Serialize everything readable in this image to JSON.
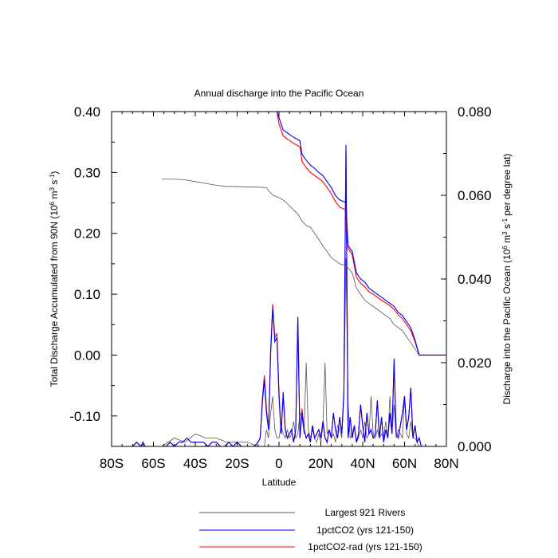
{
  "chart_data": {
    "type": "line",
    "title": "Annual discharge into the Pacific Ocean",
    "xlabel": "Latitude",
    "ylabel_left": "Total Discharge Accumulated from 90N (10^6 m^3 s^-1)",
    "ylabel_right": "Discharge into the Pacific Ocean (10^6 m^3 s^-1 per degree lat)",
    "xlim": [
      -80,
      80
    ],
    "ylim_left": [
      -0.15,
      0.4
    ],
    "ylim_right": [
      0.0,
      0.08
    ],
    "x_ticks": [
      {
        "value": -80,
        "label": "80S"
      },
      {
        "value": -60,
        "label": "60S"
      },
      {
        "value": -40,
        "label": "40S"
      },
      {
        "value": -20,
        "label": "20S"
      },
      {
        "value": 0,
        "label": "0"
      },
      {
        "value": 20,
        "label": "20N"
      },
      {
        "value": 40,
        "label": "40N"
      },
      {
        "value": 60,
        "label": "60N"
      },
      {
        "value": 80,
        "label": "80N"
      }
    ],
    "y_left_ticks": [
      {
        "value": 0.4,
        "label": "0.40"
      },
      {
        "value": 0.3,
        "label": "0.30"
      },
      {
        "value": 0.2,
        "label": "0.20"
      },
      {
        "value": 0.1,
        "label": "0.10"
      },
      {
        "value": 0.0,
        "label": "0.00"
      },
      {
        "value": -0.1,
        "label": "-0.10"
      }
    ],
    "y_right_ticks": [
      {
        "value": 0.08,
        "label": "0.080"
      },
      {
        "value": 0.06,
        "label": "0.060"
      },
      {
        "value": 0.04,
        "label": "0.040"
      },
      {
        "value": 0.02,
        "label": "0.020"
      },
      {
        "value": 0.0,
        "label": "0.000"
      }
    ],
    "legend": [
      {
        "name": "Largest 921 Rivers",
        "color": "#555555"
      },
      {
        "name": "1pctCO2 (yrs 121-150)",
        "color": "#0000ff"
      },
      {
        "name": "1pctCO2-rad (yrs 121-150)",
        "color": "#ff0000"
      }
    ],
    "legend_placement": "bottom",
    "series": [
      {
        "name": "Largest 921 Rivers",
        "kind": "accumulated",
        "axis": "left",
        "color": "#555555",
        "x": [
          -56,
          -50,
          -45,
          -40,
          -35,
          -30,
          -25,
          -20,
          -15,
          -10,
          -6,
          -5,
          -3,
          -1,
          1,
          3,
          5,
          7,
          9,
          11,
          13,
          15,
          17,
          19,
          21,
          23,
          25,
          27,
          29,
          31,
          32,
          33,
          35,
          37,
          39,
          41,
          43,
          45,
          47,
          49,
          51,
          53,
          55,
          57,
          59,
          61,
          63,
          65,
          67,
          69,
          72,
          75,
          80
        ],
        "y": [
          0.289,
          0.289,
          0.288,
          0.285,
          0.282,
          0.279,
          0.277,
          0.277,
          0.276,
          0.276,
          0.275,
          0.27,
          0.263,
          0.26,
          0.257,
          0.252,
          0.245,
          0.238,
          0.232,
          0.22,
          0.213,
          0.21,
          0.2,
          0.19,
          0.179,
          0.17,
          0.16,
          0.155,
          0.15,
          0.148,
          0.147,
          0.143,
          0.135,
          0.11,
          0.1,
          0.09,
          0.085,
          0.08,
          0.075,
          0.07,
          0.065,
          0.06,
          0.05,
          0.045,
          0.04,
          0.03,
          0.02,
          0.01,
          0.0,
          0.0,
          0.0,
          0.0,
          0.0
        ]
      },
      {
        "name": "1pctCO2 (yrs 121-150)",
        "kind": "accumulated",
        "axis": "left",
        "color": "#0000ff",
        "x": [
          -1,
          0,
          2,
          4,
          6,
          8,
          10,
          11,
          13,
          15,
          17,
          19,
          21,
          23,
          25,
          27,
          29,
          31,
          32,
          33,
          35,
          37,
          39,
          41,
          43,
          45,
          47,
          49,
          51,
          53,
          55,
          57,
          59,
          61,
          63,
          65,
          67,
          69,
          72,
          75,
          80
        ],
        "y": [
          0.4,
          0.39,
          0.37,
          0.365,
          0.36,
          0.356,
          0.352,
          0.33,
          0.32,
          0.312,
          0.307,
          0.3,
          0.295,
          0.285,
          0.275,
          0.262,
          0.255,
          0.252,
          0.25,
          0.18,
          0.17,
          0.135,
          0.125,
          0.12,
          0.11,
          0.105,
          0.1,
          0.095,
          0.09,
          0.085,
          0.08,
          0.07,
          0.065,
          0.055,
          0.045,
          0.025,
          0.0,
          0.0,
          0.0,
          0.0,
          0.0
        ]
      },
      {
        "name": "1pctCO2-rad (yrs 121-150)",
        "kind": "accumulated",
        "axis": "left",
        "color": "#ff0000",
        "x": [
          -1,
          0,
          2,
          4,
          6,
          8,
          10,
          11,
          13,
          15,
          17,
          19,
          21,
          23,
          25,
          27,
          29,
          31,
          32,
          33,
          35,
          37,
          39,
          41,
          43,
          45,
          47,
          49,
          51,
          53,
          55,
          57,
          59,
          61,
          63,
          65,
          67,
          69,
          72,
          75,
          80
        ],
        "y": [
          0.4,
          0.38,
          0.36,
          0.355,
          0.35,
          0.346,
          0.342,
          0.318,
          0.308,
          0.3,
          0.295,
          0.29,
          0.285,
          0.275,
          0.265,
          0.252,
          0.243,
          0.24,
          0.238,
          0.175,
          0.165,
          0.128,
          0.118,
          0.112,
          0.104,
          0.1,
          0.095,
          0.09,
          0.086,
          0.081,
          0.075,
          0.066,
          0.06,
          0.05,
          0.04,
          0.022,
          0.0,
          0.0,
          0.0,
          0.0,
          0.0
        ]
      },
      {
        "name": "Largest 921 Rivers",
        "kind": "per_degree",
        "axis": "right",
        "color": "#555555",
        "x": [
          -56,
          -50,
          -45,
          -40,
          -35,
          -30,
          -25,
          -20,
          -15,
          -10,
          -7,
          -6,
          -5,
          -4,
          -3,
          -2,
          -1,
          0,
          1,
          2,
          3,
          4,
          5,
          6,
          7,
          8,
          9,
          10,
          11,
          12,
          13,
          14,
          15,
          16,
          17,
          18,
          19,
          20,
          21,
          22,
          23,
          24,
          25,
          26,
          27,
          28,
          29,
          30,
          31,
          32,
          33,
          34,
          35,
          36,
          37,
          38,
          39,
          40,
          41,
          42,
          43,
          44,
          45,
          46,
          47,
          48,
          49,
          50,
          51,
          52,
          53,
          54,
          55,
          56,
          57,
          58,
          59,
          60,
          61,
          62,
          63,
          64,
          65,
          66,
          67,
          68,
          69,
          70
        ],
        "y": [
          0.0,
          0.002,
          0.001,
          0.003,
          0.002,
          0.002,
          0.001,
          0.001,
          0.001,
          0.0,
          0.0,
          0.004,
          0.002,
          0.008,
          0.012,
          0.004,
          0.002,
          0.002,
          0.005,
          0.003,
          0.002,
          0.004,
          0.002,
          0.003,
          0.006,
          0.002,
          0.003,
          0.008,
          0.007,
          0.003,
          0.02,
          0.004,
          0.002,
          0.004,
          0.002,
          0.001,
          0.003,
          0.001,
          0.005,
          0.02,
          0.003,
          0.004,
          0.002,
          0.003,
          0.001,
          0.005,
          0.004,
          0.002,
          0.012,
          0.045,
          0.01,
          0.002,
          0.003,
          0.005,
          0.001,
          0.002,
          0.004,
          0.002,
          0.006,
          0.002,
          0.003,
          0.012,
          0.003,
          0.002,
          0.004,
          0.002,
          0.003,
          0.002,
          0.006,
          0.002,
          0.012,
          0.003,
          0.01,
          0.002,
          0.004,
          0.003,
          0.002,
          0.012,
          0.003,
          0.002,
          0.006,
          0.002,
          0.002,
          0.001,
          0.0,
          0.0,
          0.0,
          0.0
        ]
      },
      {
        "name": "1pctCO2 (yrs 121-150)",
        "kind": "per_degree",
        "axis": "right",
        "color": "#0000ff",
        "x": [
          -80,
          -70,
          -68,
          -66,
          -65,
          -64,
          -62,
          -60,
          -56,
          -54,
          -52,
          -50,
          -48,
          -46,
          -44,
          -42,
          -40,
          -38,
          -36,
          -34,
          -32,
          -30,
          -28,
          -26,
          -24,
          -22,
          -20,
          -18,
          -16,
          -14,
          -12,
          -10,
          -9,
          -8,
          -7,
          -6,
          -5,
          -4,
          -3,
          -2,
          -1,
          0,
          1,
          2,
          3,
          4,
          5,
          6,
          7,
          8,
          9,
          10,
          11,
          12,
          13,
          14,
          15,
          16,
          17,
          18,
          19,
          20,
          21,
          22,
          23,
          24,
          25,
          26,
          27,
          28,
          29,
          30,
          31,
          32,
          33,
          34,
          35,
          36,
          37,
          38,
          39,
          40,
          41,
          42,
          43,
          44,
          45,
          46,
          47,
          48,
          49,
          50,
          51,
          52,
          53,
          54,
          55,
          56,
          57,
          58,
          59,
          60,
          61,
          62,
          63,
          64,
          65,
          66,
          67,
          68,
          70,
          75,
          80
        ],
        "y": [
          0.0,
          0.0,
          0.001,
          0.0,
          0.001,
          0.0,
          0.0,
          0.0,
          0.0,
          0.0,
          0.001,
          0.0,
          0.001,
          0.001,
          0.002,
          0.001,
          0.001,
          0.001,
          0.001,
          0.0,
          0.001,
          0.001,
          0.0,
          0.0,
          0.001,
          0.0,
          0.001,
          0.0,
          0.0,
          0.0,
          0.0,
          0.001,
          0.002,
          0.01,
          0.016,
          0.008,
          0.004,
          0.022,
          0.033,
          0.025,
          0.026,
          0.012,
          0.003,
          0.013,
          0.004,
          0.002,
          0.003,
          0.004,
          0.001,
          0.004,
          0.031,
          0.002,
          0.008,
          0.004,
          0.002,
          0.003,
          0.001,
          0.005,
          0.002,
          0.003,
          0.004,
          0.002,
          0.006,
          0.002,
          0.001,
          0.004,
          0.002,
          0.008,
          0.004,
          0.002,
          0.007,
          0.003,
          0.013,
          0.072,
          0.002,
          0.007,
          0.002,
          0.005,
          0.001,
          0.003,
          0.01,
          0.005,
          0.001,
          0.008,
          0.003,
          0.004,
          0.002,
          0.003,
          0.011,
          0.002,
          0.007,
          0.001,
          0.004,
          0.002,
          0.008,
          0.003,
          0.021,
          0.003,
          0.002,
          0.005,
          0.008,
          0.012,
          0.004,
          0.007,
          0.014,
          0.002,
          0.005,
          0.001,
          0.002,
          0.0,
          0.0,
          0.0,
          0.0
        ]
      },
      {
        "name": "1pctCO2-rad (yrs 121-150)",
        "kind": "per_degree",
        "axis": "right",
        "color": "#ff0000",
        "x": [
          -80,
          -70,
          -68,
          -66,
          -65,
          -64,
          -62,
          -60,
          -56,
          -54,
          -52,
          -50,
          -48,
          -46,
          -44,
          -42,
          -40,
          -38,
          -36,
          -34,
          -32,
          -30,
          -28,
          -26,
          -24,
          -22,
          -20,
          -18,
          -16,
          -14,
          -12,
          -10,
          -9,
          -8,
          -7,
          -6,
          -5,
          -4,
          -3,
          -2,
          -1,
          0,
          1,
          2,
          3,
          4,
          5,
          6,
          7,
          8,
          9,
          10,
          11,
          12,
          13,
          14,
          15,
          16,
          17,
          18,
          19,
          20,
          21,
          22,
          23,
          24,
          25,
          26,
          27,
          28,
          29,
          30,
          31,
          32,
          33,
          34,
          35,
          36,
          37,
          38,
          39,
          40,
          41,
          42,
          43,
          44,
          45,
          46,
          47,
          48,
          49,
          50,
          51,
          52,
          53,
          54,
          55,
          56,
          57,
          58,
          59,
          60,
          61,
          62,
          63,
          64,
          65,
          66,
          67,
          68,
          70,
          75,
          80
        ],
        "y": [
          0.0,
          0.0,
          0.001,
          0.0,
          0.001,
          0.0,
          0.0,
          0.0,
          0.0,
          0.0,
          0.001,
          0.0,
          0.001,
          0.001,
          0.002,
          0.001,
          0.001,
          0.001,
          0.001,
          0.0,
          0.001,
          0.001,
          0.0,
          0.0,
          0.001,
          0.0,
          0.001,
          0.0,
          0.0,
          0.0,
          0.0,
          0.001,
          0.002,
          0.011,
          0.017,
          0.009,
          0.004,
          0.023,
          0.034,
          0.026,
          0.027,
          0.013,
          0.003,
          0.012,
          0.004,
          0.002,
          0.003,
          0.004,
          0.001,
          0.004,
          0.03,
          0.002,
          0.009,
          0.004,
          0.002,
          0.003,
          0.001,
          0.005,
          0.002,
          0.003,
          0.004,
          0.002,
          0.006,
          0.002,
          0.001,
          0.004,
          0.002,
          0.008,
          0.004,
          0.002,
          0.007,
          0.003,
          0.012,
          0.071,
          0.002,
          0.007,
          0.002,
          0.005,
          0.001,
          0.003,
          0.01,
          0.005,
          0.001,
          0.008,
          0.003,
          0.004,
          0.002,
          0.003,
          0.011,
          0.002,
          0.007,
          0.001,
          0.004,
          0.002,
          0.008,
          0.003,
          0.02,
          0.003,
          0.002,
          0.005,
          0.008,
          0.012,
          0.004,
          0.007,
          0.014,
          0.002,
          0.005,
          0.001,
          0.002,
          0.0,
          0.0,
          0.0,
          0.0
        ]
      }
    ]
  }
}
